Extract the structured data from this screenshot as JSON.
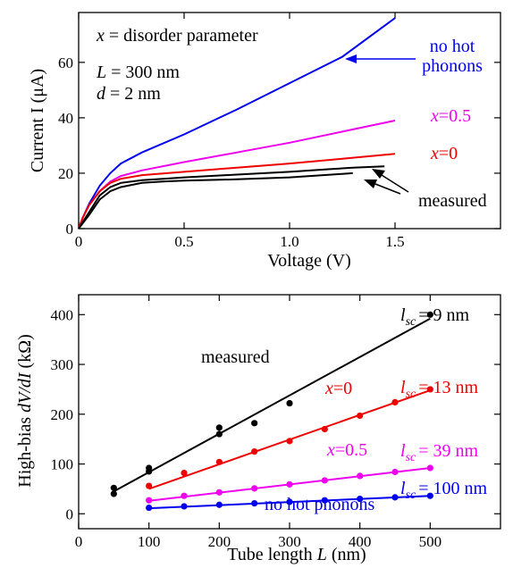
{
  "chart_data": [
    {
      "type": "line",
      "xlabel": "Voltage (V)",
      "ylabel": "Current I (μA)",
      "xlim": [
        0,
        2.0
      ],
      "ylim": [
        0,
        78
      ],
      "xticks": [
        0,
        0.5,
        1.0,
        1.5
      ],
      "xtick_labels": [
        "0",
        "0.5",
        "1.0",
        "1.5"
      ],
      "yticks": [
        0,
        20,
        40,
        60
      ],
      "ytick_labels": [
        "0",
        "20",
        "40",
        "60"
      ],
      "annotations": {
        "param_x_var": "x",
        "param_x_rest": " = disorder parameter",
        "param_L_var": "L",
        "param_L_rest": " = 300 nm",
        "param_d_var": "d",
        "param_d_rest": " = 2 nm",
        "nohot_line1": "no hot",
        "nohot_line2": "phonons",
        "x05_var": "x",
        "x05_rest": "=0.5",
        "x0_var": "x",
        "x0_rest": "=0",
        "measured": "measured"
      },
      "series": [
        {
          "name": "no hot phonons",
          "color": "#0000ee",
          "x": [
            0,
            0.02,
            0.05,
            0.1,
            0.15,
            0.2,
            0.3,
            0.5,
            0.75,
            1.0,
            1.25,
            1.5
          ],
          "y": [
            0,
            4,
            9,
            15.5,
            20,
            23.5,
            27.5,
            34,
            43,
            52.5,
            62,
            76
          ]
        },
        {
          "name": "x=0.5",
          "color": "#ee00ee",
          "x": [
            0,
            0.02,
            0.05,
            0.1,
            0.15,
            0.2,
            0.3,
            0.5,
            0.75,
            1.0,
            1.25,
            1.5
          ],
          "y": [
            0,
            4,
            8.5,
            13.5,
            17,
            19,
            21,
            24,
            27.5,
            31,
            35,
            39
          ]
        },
        {
          "name": "x=0",
          "color": "#ee0000",
          "x": [
            0,
            0.02,
            0.05,
            0.1,
            0.15,
            0.2,
            0.3,
            0.5,
            0.75,
            1.0,
            1.25,
            1.5
          ],
          "y": [
            0,
            4,
            8.5,
            13.5,
            16.5,
            18,
            19.3,
            20.5,
            22,
            23.5,
            25.2,
            27
          ]
        },
        {
          "name": "measured (upper)",
          "color": "#000000",
          "x": [
            0,
            0.05,
            0.1,
            0.15,
            0.2,
            0.3,
            0.4,
            0.5,
            0.75,
            1.0,
            1.2,
            1.3,
            1.45
          ],
          "y": [
            0,
            6,
            12,
            15,
            16.5,
            17.5,
            18,
            18.5,
            19.5,
            20.5,
            21.5,
            22,
            22.5
          ]
        },
        {
          "name": "measured (lower)",
          "color": "#000000",
          "x": [
            0,
            0.05,
            0.1,
            0.15,
            0.2,
            0.3,
            0.4,
            0.5,
            0.75,
            1.0,
            1.2,
            1.3
          ],
          "y": [
            0,
            5,
            10.5,
            13.5,
            15,
            16.5,
            17,
            17.3,
            17.8,
            18.5,
            19.5,
            20
          ]
        }
      ]
    },
    {
      "type": "scatter",
      "xlabel_pre": "Tube length ",
      "xlabel_var": "L",
      "xlabel_post": " (nm)",
      "ylabel_pre": "High-bias ",
      "ylabel_var": "dV/dI",
      "ylabel_post": " (kΩ)",
      "xlim": [
        0,
        600
      ],
      "ylim": [
        -30,
        440
      ],
      "xticks": [
        0,
        100,
        200,
        300,
        400,
        500
      ],
      "xtick_labels": [
        "0",
        "100",
        "200",
        "300",
        "400",
        "500"
      ],
      "yticks": [
        0,
        100,
        200,
        300,
        400
      ],
      "ytick_labels": [
        "0",
        "100",
        "200",
        "300",
        "400"
      ],
      "annotations": {
        "measured": "measured",
        "x0_var": "x",
        "x0_rest": "=0",
        "x05_var": "x",
        "x05_rest": "=0.5",
        "nohot": "no hot phonons",
        "lsc_l": "l",
        "lsc_sub": "sc",
        "lsc9": "= 9 nm",
        "lsc13": "= 13 nm",
        "lsc39": "= 39 nm",
        "lsc100": "= 100 nm"
      },
      "series": [
        {
          "name": "measured",
          "color": "#000000",
          "points": [
            [
              50,
              40
            ],
            [
              50,
              52
            ],
            [
              100,
              85
            ],
            [
              100,
              92
            ],
            [
              200,
              160
            ],
            [
              200,
              173
            ],
            [
              250,
              182
            ],
            [
              300,
              222
            ],
            [
              500,
              400
            ]
          ],
          "fit": [
            [
              50,
              45
            ],
            [
              500,
              392
            ]
          ]
        },
        {
          "name": "x=0",
          "color": "#ee0000",
          "points": [
            [
              100,
              56
            ],
            [
              150,
              82
            ],
            [
              200,
              104
            ],
            [
              250,
              125
            ],
            [
              300,
              146
            ],
            [
              350,
              170
            ],
            [
              400,
              197
            ],
            [
              450,
              224
            ],
            [
              500,
              250
            ]
          ],
          "fit": [
            [
              100,
              50
            ],
            [
              500,
              248
            ]
          ]
        },
        {
          "name": "x=0.5",
          "color": "#ee00ee",
          "points": [
            [
              100,
              27
            ],
            [
              150,
              36
            ],
            [
              200,
              43
            ],
            [
              250,
              51
            ],
            [
              300,
              59
            ],
            [
              350,
              67
            ],
            [
              400,
              76
            ],
            [
              450,
              84
            ],
            [
              500,
              92
            ]
          ],
          "fit": [
            [
              100,
              26
            ],
            [
              500,
              92
            ]
          ]
        },
        {
          "name": "no hot phonons",
          "color": "#0000ee",
          "points": [
            [
              100,
              12
            ],
            [
              150,
              15
            ],
            [
              200,
              18
            ],
            [
              250,
              21
            ],
            [
              300,
              24
            ],
            [
              350,
              27
            ],
            [
              400,
              30
            ],
            [
              450,
              33
            ],
            [
              500,
              36
            ]
          ],
          "fit": [
            [
              100,
              11
            ],
            [
              500,
              36
            ]
          ]
        }
      ]
    }
  ]
}
